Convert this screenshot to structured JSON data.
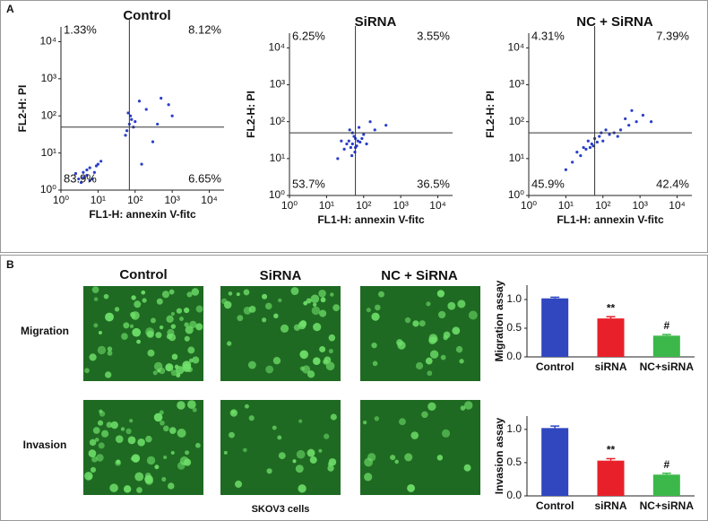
{
  "chart_data": [
    {
      "type": "scatter",
      "title": "Control",
      "xlabel": "FL1-H: annexin V-fitc",
      "ylabel": "FL2-H: PI",
      "xscale": "log",
      "yscale": "log",
      "xlim": [
        1,
        25000
      ],
      "ylim": [
        1,
        25000
      ],
      "xticks": [
        {
          "value": 1,
          "label": "10⁰"
        },
        {
          "value": 10,
          "label": "10¹"
        },
        {
          "value": 100,
          "label": "10²"
        },
        {
          "value": 1000,
          "label": "10³"
        },
        {
          "value": 10000,
          "label": "10⁴"
        }
      ],
      "yticks": [
        {
          "value": 1,
          "label": "10⁰"
        },
        {
          "value": 10,
          "label": "10¹"
        },
        {
          "value": 100,
          "label": "10²"
        },
        {
          "value": 1000,
          "label": "10³"
        },
        {
          "value": 10000,
          "label": "10⁴"
        }
      ],
      "gate_x": 70,
      "gate_y": 50,
      "color": "#2a3fc8",
      "quadrants": {
        "values": [
          1.33,
          8.12,
          83.9,
          6.65
        ],
        "value_labels": [
          "1.33%",
          "8.12%",
          "83.9%",
          "6.65%"
        ]
      },
      "x": [
        3,
        4,
        5,
        6,
        8,
        10,
        3.5,
        7,
        5,
        4,
        9,
        12,
        6,
        2.5,
        60,
        70,
        80,
        90,
        55,
        75,
        65,
        100,
        200,
        500,
        300,
        1000,
        150,
        400,
        800,
        130
      ],
      "y": [
        2,
        3,
        2.5,
        4,
        3,
        5,
        1.6,
        2,
        3.5,
        2.2,
        4.5,
        6,
        1.8,
        2.8,
        40,
        60,
        80,
        50,
        30,
        100,
        120,
        70,
        150,
        300,
        20,
        100,
        5,
        60,
        200,
        250
      ]
    },
    {
      "type": "scatter",
      "title": "SiRNA",
      "xlabel": "FL1-H: annexin V-fitc",
      "ylabel": "FL2-H: PI",
      "xscale": "log",
      "yscale": "log",
      "xlim": [
        1,
        25000
      ],
      "ylim": [
        1,
        25000
      ],
      "xticks": [
        {
          "value": 1,
          "label": "10⁰"
        },
        {
          "value": 10,
          "label": "10¹"
        },
        {
          "value": 100,
          "label": "10²"
        },
        {
          "value": 1000,
          "label": "10³"
        },
        {
          "value": 10000,
          "label": "10⁴"
        }
      ],
      "yticks": [
        {
          "value": 1,
          "label": "10⁰"
        },
        {
          "value": 10,
          "label": "10¹"
        },
        {
          "value": 100,
          "label": "10²"
        },
        {
          "value": 1000,
          "label": "10³"
        },
        {
          "value": 10000,
          "label": "10⁴"
        }
      ],
      "gate_x": 60,
      "gate_y": 50,
      "color": "#2a3fc8",
      "quadrants": {
        "values": [
          6.25,
          3.55,
          53.7,
          36.5
        ],
        "value_labels": [
          "6.25%",
          "3.55%",
          "53.7%",
          "36.5%"
        ]
      },
      "x": [
        40,
        50,
        60,
        45,
        55,
        70,
        35,
        65,
        50,
        80,
        30,
        90,
        42,
        58,
        48,
        100,
        25,
        120,
        200,
        400,
        150,
        20,
        75,
        60
      ],
      "y": [
        30,
        25,
        35,
        20,
        40,
        30,
        25,
        22,
        50,
        28,
        18,
        35,
        60,
        15,
        12,
        45,
        30,
        25,
        60,
        80,
        100,
        10,
        70,
        20
      ]
    },
    {
      "type": "scatter",
      "title": "NC + SiRNA",
      "xlabel": "FL1-H: annexin V-fitc",
      "ylabel": "FL2-H: PI",
      "xscale": "log",
      "yscale": "log",
      "xlim": [
        1,
        25000
      ],
      "ylim": [
        1,
        25000
      ],
      "xticks": [
        {
          "value": 1,
          "label": "10⁰"
        },
        {
          "value": 10,
          "label": "10¹"
        },
        {
          "value": 100,
          "label": "10²"
        },
        {
          "value": 1000,
          "label": "10³"
        },
        {
          "value": 10000,
          "label": "10⁴"
        }
      ],
      "yticks": [
        {
          "value": 1,
          "label": "10⁰"
        },
        {
          "value": 10,
          "label": "10¹"
        },
        {
          "value": 100,
          "label": "10²"
        },
        {
          "value": 1000,
          "label": "10³"
        },
        {
          "value": 10000,
          "label": "10⁴"
        }
      ],
      "gate_x": 60,
      "gate_y": 50,
      "color": "#2a3fc8",
      "quadrants": {
        "values": [
          4.31,
          7.39,
          45.9,
          42.4
        ],
        "value_labels": [
          "4.31%",
          "7.39%",
          "45.9%",
          "42.4%"
        ]
      },
      "x": [
        20,
        30,
        40,
        50,
        60,
        80,
        100,
        150,
        200,
        300,
        500,
        800,
        1200,
        15,
        10,
        25,
        45,
        70,
        120,
        250,
        400,
        35,
        55,
        90,
        600,
        2000
      ],
      "y": [
        15,
        20,
        30,
        25,
        35,
        40,
        30,
        45,
        50,
        60,
        80,
        100,
        150,
        8,
        5,
        12,
        20,
        28,
        60,
        40,
        120,
        18,
        22,
        50,
        200,
        100
      ]
    },
    {
      "type": "bar",
      "ylabel": "Migration assay",
      "categories": [
        "Control",
        "siRNA",
        "NC+siRNA"
      ],
      "values": [
        1.02,
        0.67,
        0.37
      ],
      "errors": [
        0.02,
        0.03,
        0.02
      ],
      "colors": [
        "#3047c0",
        "#e8202a",
        "#3cb84a"
      ],
      "annotations": [
        null,
        "**",
        "#"
      ],
      "ylim": [
        0,
        1.25
      ],
      "yticks": [
        {
          "value": 0,
          "label": "0.0"
        },
        {
          "value": 0.5,
          "label": "0.5"
        },
        {
          "value": 1,
          "label": "1.0"
        }
      ]
    },
    {
      "type": "bar",
      "ylabel": "Invasion assay",
      "categories": [
        "Control",
        "siRNA",
        "NC+siRNA"
      ],
      "values": [
        1.02,
        0.53,
        0.32
      ],
      "errors": [
        0.03,
        0.03,
        0.02
      ],
      "colors": [
        "#3047c0",
        "#e8202a",
        "#3cb84a"
      ],
      "annotations": [
        null,
        "**",
        "#"
      ],
      "ylim": [
        0,
        1.2
      ],
      "yticks": [
        {
          "value": 0,
          "label": "0.0"
        },
        {
          "value": 0.5,
          "label": "0.5"
        },
        {
          "value": 1,
          "label": "1.0"
        }
      ]
    }
  ],
  "panels": {
    "a": "A",
    "b": "B"
  },
  "images": {
    "columns": [
      "Control",
      "SiRNA",
      "NC + SiRNA"
    ],
    "rows": [
      "Migration",
      "Invasion"
    ],
    "caption": "SKOV3 cells"
  }
}
